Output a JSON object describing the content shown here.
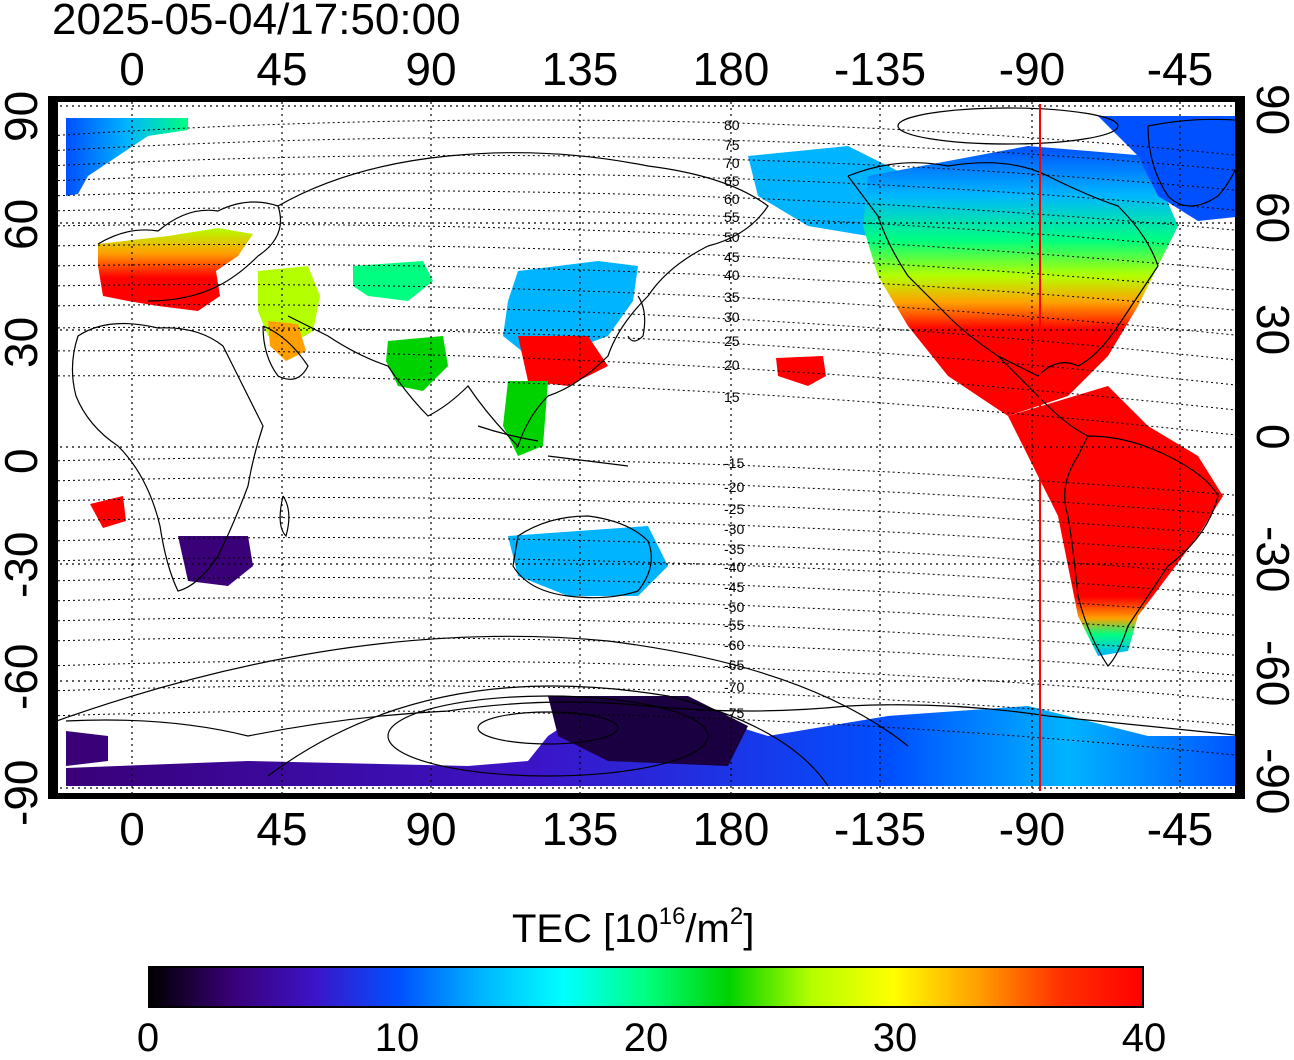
{
  "timestamp": "2025-05-04/17:50:00",
  "map": {
    "x_ticks_top": [
      "0",
      "45",
      "90",
      "135",
      "180",
      "-135",
      "-90",
      "-45"
    ],
    "x_ticks_bottom": [
      "0",
      "45",
      "90",
      "135",
      "180",
      "-135",
      "-90",
      "-45"
    ],
    "y_ticks_left": [
      "90",
      "60",
      "30",
      "0",
      "-30",
      "-60",
      "-90"
    ],
    "y_ticks_right": [
      "90",
      "60",
      "30",
      "0",
      "-30",
      "-60",
      "-90"
    ],
    "magnetic_latitude_labels": [
      "80",
      "75",
      "70",
      "65",
      "60",
      "55",
      "50",
      "45",
      "40",
      "35",
      "30",
      "25",
      "20",
      "15",
      "-15",
      "-20",
      "-25",
      "-30",
      "-35",
      "-40",
      "-45",
      "-50",
      "-55",
      "-60",
      "-65",
      "-70",
      "-75"
    ],
    "marker_longitude": -90,
    "marker_color": "#ff0000"
  },
  "colorbar": {
    "title_main": "TEC  [10",
    "title_exp1": "16",
    "title_mid": "/m",
    "title_exp2": "2",
    "title_end": "]",
    "ticks": [
      "0",
      "10",
      "20",
      "30",
      "40"
    ],
    "range": [
      0,
      40
    ],
    "colors": [
      "#000000",
      "#3a0078",
      "#3c14c8",
      "#0050ff",
      "#00b4ff",
      "#00ffff",
      "#00ff80",
      "#00d200",
      "#b4ff00",
      "#ffff00",
      "#ffa000",
      "#ff3200",
      "#ff0000"
    ]
  }
}
